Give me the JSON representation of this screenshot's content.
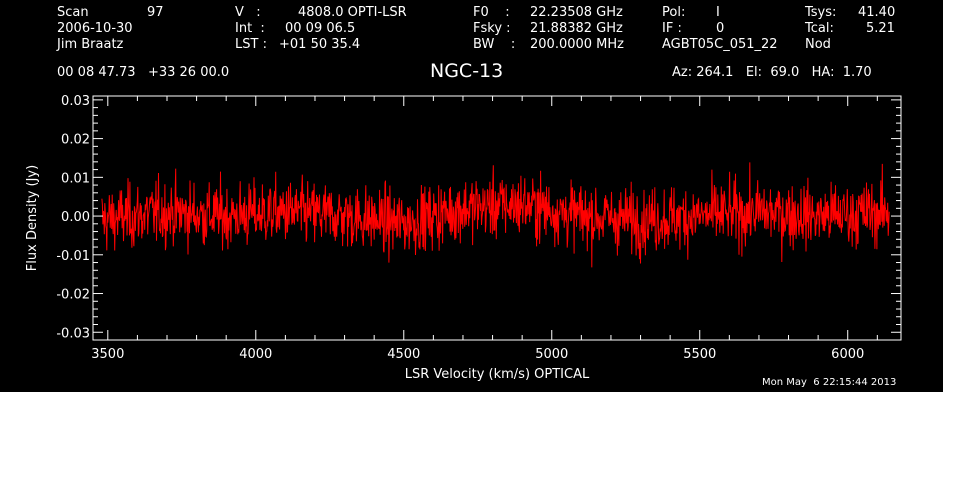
{
  "header": {
    "col1": [
      "Scan",
      "2006-10-30",
      "Jim Braatz"
    ],
    "scan_number": "97",
    "col2_labels": [
      "V   :",
      "Int  :",
      "LST :"
    ],
    "col2_values": [
      "4808.0 OPTI-LSR",
      "00 09 06.5",
      "+01 50 35.4"
    ],
    "col3_labels": [
      "F0    :",
      "Fsky :",
      "BW    :"
    ],
    "col3_values": [
      "22.23508 GHz",
      "21.88382 GHz",
      "200.0000 MHz"
    ],
    "col4_labels": [
      "Pol:",
      "IF :"
    ],
    "col4_values": [
      "I",
      "0"
    ],
    "project": "AGBT05C_051_22",
    "col5_labels": [
      "Tsys:",
      "Tcal:"
    ],
    "col5_values": [
      "41.40",
      "5.21"
    ],
    "mode": "Nod",
    "coords": "00 08 47.73   +33 26 00.0",
    "pointing": "Az: 264.1   El:  69.0   HA:  1.70"
  },
  "timestamp": "Mon May  6 22:15:44 2013",
  "chart_data": {
    "type": "line",
    "title": "NGC-13",
    "xlabel": "LSR Velocity (km/s) OPTICAL",
    "ylabel": "Flux Density (Jy)",
    "xlim": [
      3450,
      6180
    ],
    "ylim": [
      -0.032,
      0.031
    ],
    "xticks": [
      3500,
      4000,
      4500,
      5000,
      5500,
      6000
    ],
    "yticks": [
      0.03,
      0.02,
      0.01,
      0.0,
      -0.01,
      -0.02,
      -0.03
    ],
    "ytick_labels": [
      "0.03",
      "0.02",
      "0.01",
      "0.00",
      "-0.01",
      "-0.02",
      "-0.03"
    ],
    "series": [
      {
        "color": "#ff0000",
        "x_range": [
          3480,
          6140
        ],
        "baseline": [
          [
            3480,
            -0.001
          ],
          [
            3700,
            0.001
          ],
          [
            3900,
            0.0
          ],
          [
            4100,
            0.001
          ],
          [
            4300,
            0.0
          ],
          [
            4500,
            -0.002
          ],
          [
            4700,
            0.002
          ],
          [
            4900,
            0.003
          ],
          [
            5100,
            0.0
          ],
          [
            5300,
            -0.001
          ],
          [
            5500,
            0.0
          ],
          [
            5700,
            0.001
          ],
          [
            5900,
            0.0
          ],
          [
            6140,
            0.001
          ]
        ],
        "noise_rms": 0.0055,
        "n_points": 1600
      }
    ],
    "grid": false
  }
}
